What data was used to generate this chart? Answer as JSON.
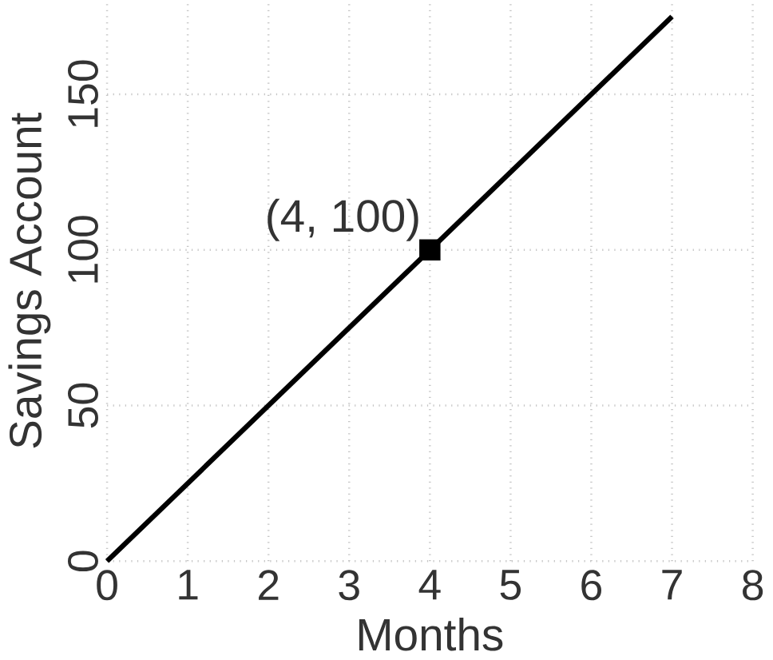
{
  "chart_data": {
    "type": "line",
    "xlabel": "Months",
    "ylabel": "Savings Account",
    "series": [
      {
        "color": "#000000",
        "x": [
          0,
          7
        ],
        "values": [
          0,
          175
        ]
      },
      {
        "type": "scatter",
        "color": "#000000",
        "marker": "square",
        "x": [
          4
        ],
        "values": [
          100
        ]
      }
    ],
    "annotations": [
      {
        "text": "(4, 100)",
        "x": 4,
        "y": 100
      }
    ],
    "xlim": [
      0,
      8
    ],
    "ylim": [
      0,
      180
    ],
    "xticks": [
      0,
      1,
      2,
      3,
      4,
      5,
      6,
      7,
      8
    ],
    "yticks": [
      0,
      50,
      100,
      150
    ],
    "grid": true,
    "marker": "none"
  }
}
